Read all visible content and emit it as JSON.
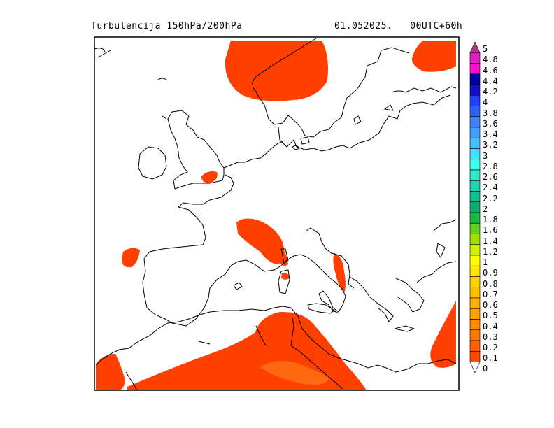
{
  "header": {
    "product": "Turbulencija 150hPa/200hPa",
    "date": "01.052025.",
    "run": "00UTC+60h",
    "run_line": "01.052025.   00UTC+60h"
  },
  "map": {
    "region": "Europe / Mediterranean",
    "fill_color": "#ff4000",
    "inner_fill_color": "#ff6a10",
    "coast_color": "#000000"
  },
  "legend": {
    "levels": [
      {
        "label": "5",
        "color": "#c0308a"
      },
      {
        "label": "4.8",
        "color": "#e020c0"
      },
      {
        "label": "4.6",
        "color": "#ff10d0"
      },
      {
        "label": "4.4",
        "color": "#0000a0"
      },
      {
        "label": "4.2",
        "color": "#1010c8"
      },
      {
        "label": "4",
        "color": "#2040ff"
      },
      {
        "label": "3.8",
        "color": "#3060ff"
      },
      {
        "label": "3.6",
        "color": "#4080ff"
      },
      {
        "label": "3.4",
        "color": "#40a0ff"
      },
      {
        "label": "3.2",
        "color": "#40c0ff"
      },
      {
        "label": "3",
        "color": "#40e0ff"
      },
      {
        "label": "2.8",
        "color": "#40ffe8"
      },
      {
        "label": "2.6",
        "color": "#30e8c8"
      },
      {
        "label": "2.4",
        "color": "#20d0b0"
      },
      {
        "label": "2.2",
        "color": "#10c090"
      },
      {
        "label": "2",
        "color": "#10b070"
      },
      {
        "label": "1.8",
        "color": "#10c040"
      },
      {
        "label": "1.6",
        "color": "#60d020"
      },
      {
        "label": "1.4",
        "color": "#a0e000"
      },
      {
        "label": "1.2",
        "color": "#d0f000"
      },
      {
        "label": "1",
        "color": "#ffff00"
      },
      {
        "label": "0.9",
        "color": "#ffe800"
      },
      {
        "label": "0.8",
        "color": "#ffd000"
      },
      {
        "label": "0.7",
        "color": "#ffc000"
      },
      {
        "label": "0.6",
        "color": "#ffb000"
      },
      {
        "label": "0.5",
        "color": "#ffa000"
      },
      {
        "label": "0.4",
        "color": "#ff8c00"
      },
      {
        "label": "0.3",
        "color": "#ff7800"
      },
      {
        "label": "0.2",
        "color": "#ff6000"
      },
      {
        "label": "0.1",
        "color": "#ff4800"
      },
      {
        "label": "0",
        "color": "#ffffff"
      }
    ]
  }
}
